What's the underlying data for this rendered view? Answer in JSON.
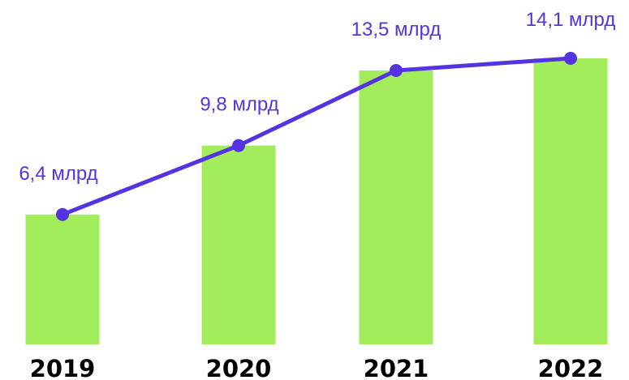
{
  "chart_data": {
    "type": "bar",
    "categories": [
      "2019",
      "2020",
      "2021",
      "2022"
    ],
    "values": [
      6.4,
      9.8,
      13.5,
      14.1
    ],
    "data_labels": [
      "6,4 млрд",
      "9,8 млрд",
      "13,5 млрд",
      "14,1 млрд"
    ],
    "overlay": "line-with-markers",
    "title": "",
    "xlabel": "",
    "ylabel": "",
    "ylim": [
      0,
      14.1
    ],
    "grid": false,
    "legend": "none",
    "colors": {
      "bar": "#a3ec5b",
      "line": "#5533e0",
      "label": "#5533e0",
      "category_text": "#000000"
    }
  }
}
